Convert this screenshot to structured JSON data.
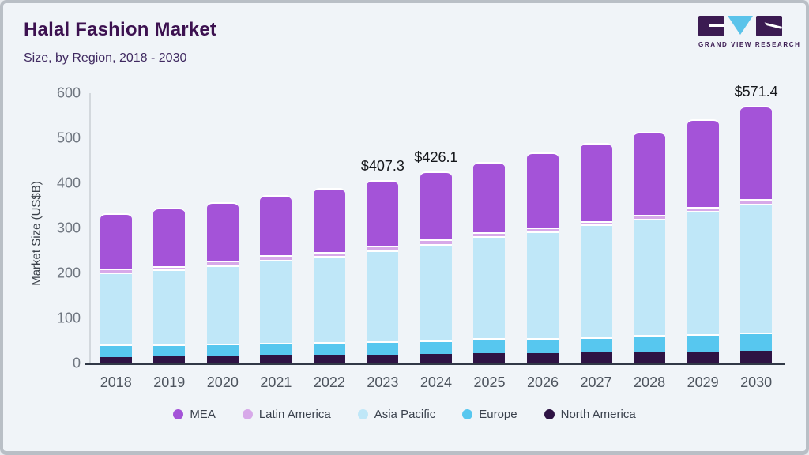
{
  "header": {
    "title": "Halal Fashion Market",
    "subtitle": "Size, by Region, 2018 - 2030"
  },
  "logo": {
    "text": "GRAND VIEW RESEARCH",
    "dark_color": "#3b1b52",
    "accent_color": "#5ac3ea"
  },
  "chart_data": {
    "type": "bar",
    "stacked": true,
    "title": "Halal Fashion Market",
    "subtitle": "Size, by Region, 2018 - 2030",
    "ylabel": "Market Size (US$B)",
    "xlabel": "",
    "ylim": [
      0,
      600
    ],
    "y_ticks": [
      0,
      100,
      200,
      300,
      400,
      500,
      600
    ],
    "grid": false,
    "legend_position": "bottom",
    "categories": [
      "2018",
      "2019",
      "2020",
      "2021",
      "2022",
      "2023",
      "2024",
      "2025",
      "2026",
      "2027",
      "2028",
      "2029",
      "2030"
    ],
    "series": [
      {
        "name": "North America",
        "color": "#2e1344",
        "values": [
          13.5,
          15.3,
          16.3,
          17.5,
          18.8,
          19.8,
          21.0,
          22.0,
          23.3,
          25.1,
          26.0,
          27.0,
          27.5
        ]
      },
      {
        "name": "Europe",
        "color": "#57c7ef",
        "values": [
          28.1,
          27.3,
          28.1,
          28.1,
          28.0,
          28.8,
          29.3,
          33.6,
          33.7,
          33.3,
          36.6,
          38.4,
          41.5
        ]
      },
      {
        "name": "Asia Pacific",
        "color": "#bfe7f8",
        "values": [
          160.1,
          165.4,
          173.1,
          184.2,
          191.2,
          202.2,
          214.0,
          226.8,
          236.5,
          249.6,
          258.4,
          273.2,
          285.8
        ]
      },
      {
        "name": "Latin America",
        "color": "#d7a9e9",
        "values": [
          8.8,
          8.5,
          10.5,
          10.5,
          8.8,
          10.0,
          10.5,
          8.8,
          7.5,
          7.7,
          8.9,
          8.7,
          10.6
        ]
      },
      {
        "name": "MEA",
        "color": "#a453d8",
        "values": [
          123.5,
          129.5,
          130.0,
          133.7,
          143.2,
          146.5,
          151.3,
          155.8,
          167.0,
          173.3,
          183.6,
          194.7,
          206.0
        ]
      }
    ],
    "totals": [
      334.0,
      346.0,
      358.0,
      374.0,
      390.0,
      407.3,
      426.1,
      447.0,
      468.0,
      489.0,
      513.5,
      542.0,
      571.4
    ],
    "total_labels": {
      "2023": "$407.3",
      "2024": "$426.1",
      "2030": "$571.4"
    },
    "legend": [
      {
        "label": "MEA",
        "color": "#a453d8"
      },
      {
        "label": "Latin America",
        "color": "#d7a9e9"
      },
      {
        "label": "Asia Pacific",
        "color": "#bfe7f8"
      },
      {
        "label": "Europe",
        "color": "#57c7ef"
      },
      {
        "label": "North America",
        "color": "#2e1344"
      }
    ]
  }
}
